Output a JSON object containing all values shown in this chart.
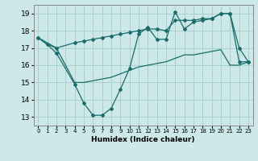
{
  "xlabel": "Humidex (Indice chaleur)",
  "background_color": "#cce8e8",
  "grid_color": "#aacfcf",
  "line_color": "#1a6b6b",
  "xlim": [
    -0.5,
    23.5
  ],
  "ylim": [
    12.5,
    19.5
  ],
  "xticks": [
    0,
    1,
    2,
    3,
    4,
    5,
    6,
    7,
    8,
    9,
    10,
    11,
    12,
    13,
    14,
    15,
    16,
    17,
    18,
    19,
    20,
    21,
    22,
    23
  ],
  "yticks": [
    13,
    14,
    15,
    16,
    17,
    18,
    19
  ],
  "line1_x": [
    0,
    1,
    2,
    4,
    5,
    6,
    7,
    8,
    9,
    10,
    11,
    12,
    13,
    14,
    15,
    16,
    17,
    18,
    19,
    20,
    21,
    22,
    23
  ],
  "line1_y": [
    17.6,
    17.2,
    16.7,
    14.9,
    13.8,
    13.1,
    13.1,
    13.5,
    14.6,
    15.8,
    17.8,
    18.2,
    17.5,
    17.5,
    19.1,
    18.1,
    18.5,
    18.6,
    18.7,
    19.0,
    19.0,
    17.0,
    16.2
  ],
  "line2_x": [
    0,
    2,
    4,
    5,
    6,
    7,
    8,
    9,
    10,
    11,
    12,
    13,
    14,
    15,
    16,
    17,
    18,
    19,
    20,
    21,
    22,
    23
  ],
  "line2_y": [
    17.6,
    17.0,
    17.3,
    17.4,
    17.5,
    17.6,
    17.7,
    17.8,
    17.9,
    18.0,
    18.1,
    18.1,
    18.0,
    18.6,
    18.6,
    18.6,
    18.7,
    18.7,
    19.0,
    19.0,
    16.2,
    16.2
  ],
  "line3_x": [
    0,
    1,
    2,
    4,
    5,
    6,
    7,
    8,
    9,
    10,
    11,
    12,
    13,
    14,
    15,
    16,
    17,
    18,
    19,
    20,
    21,
    22,
    23
  ],
  "line3_y": [
    17.6,
    17.2,
    17.0,
    15.0,
    15.0,
    15.1,
    15.2,
    15.3,
    15.5,
    15.7,
    15.9,
    16.0,
    16.1,
    16.2,
    16.4,
    16.6,
    16.6,
    16.7,
    16.8,
    16.9,
    16.0,
    16.0,
    16.2
  ]
}
